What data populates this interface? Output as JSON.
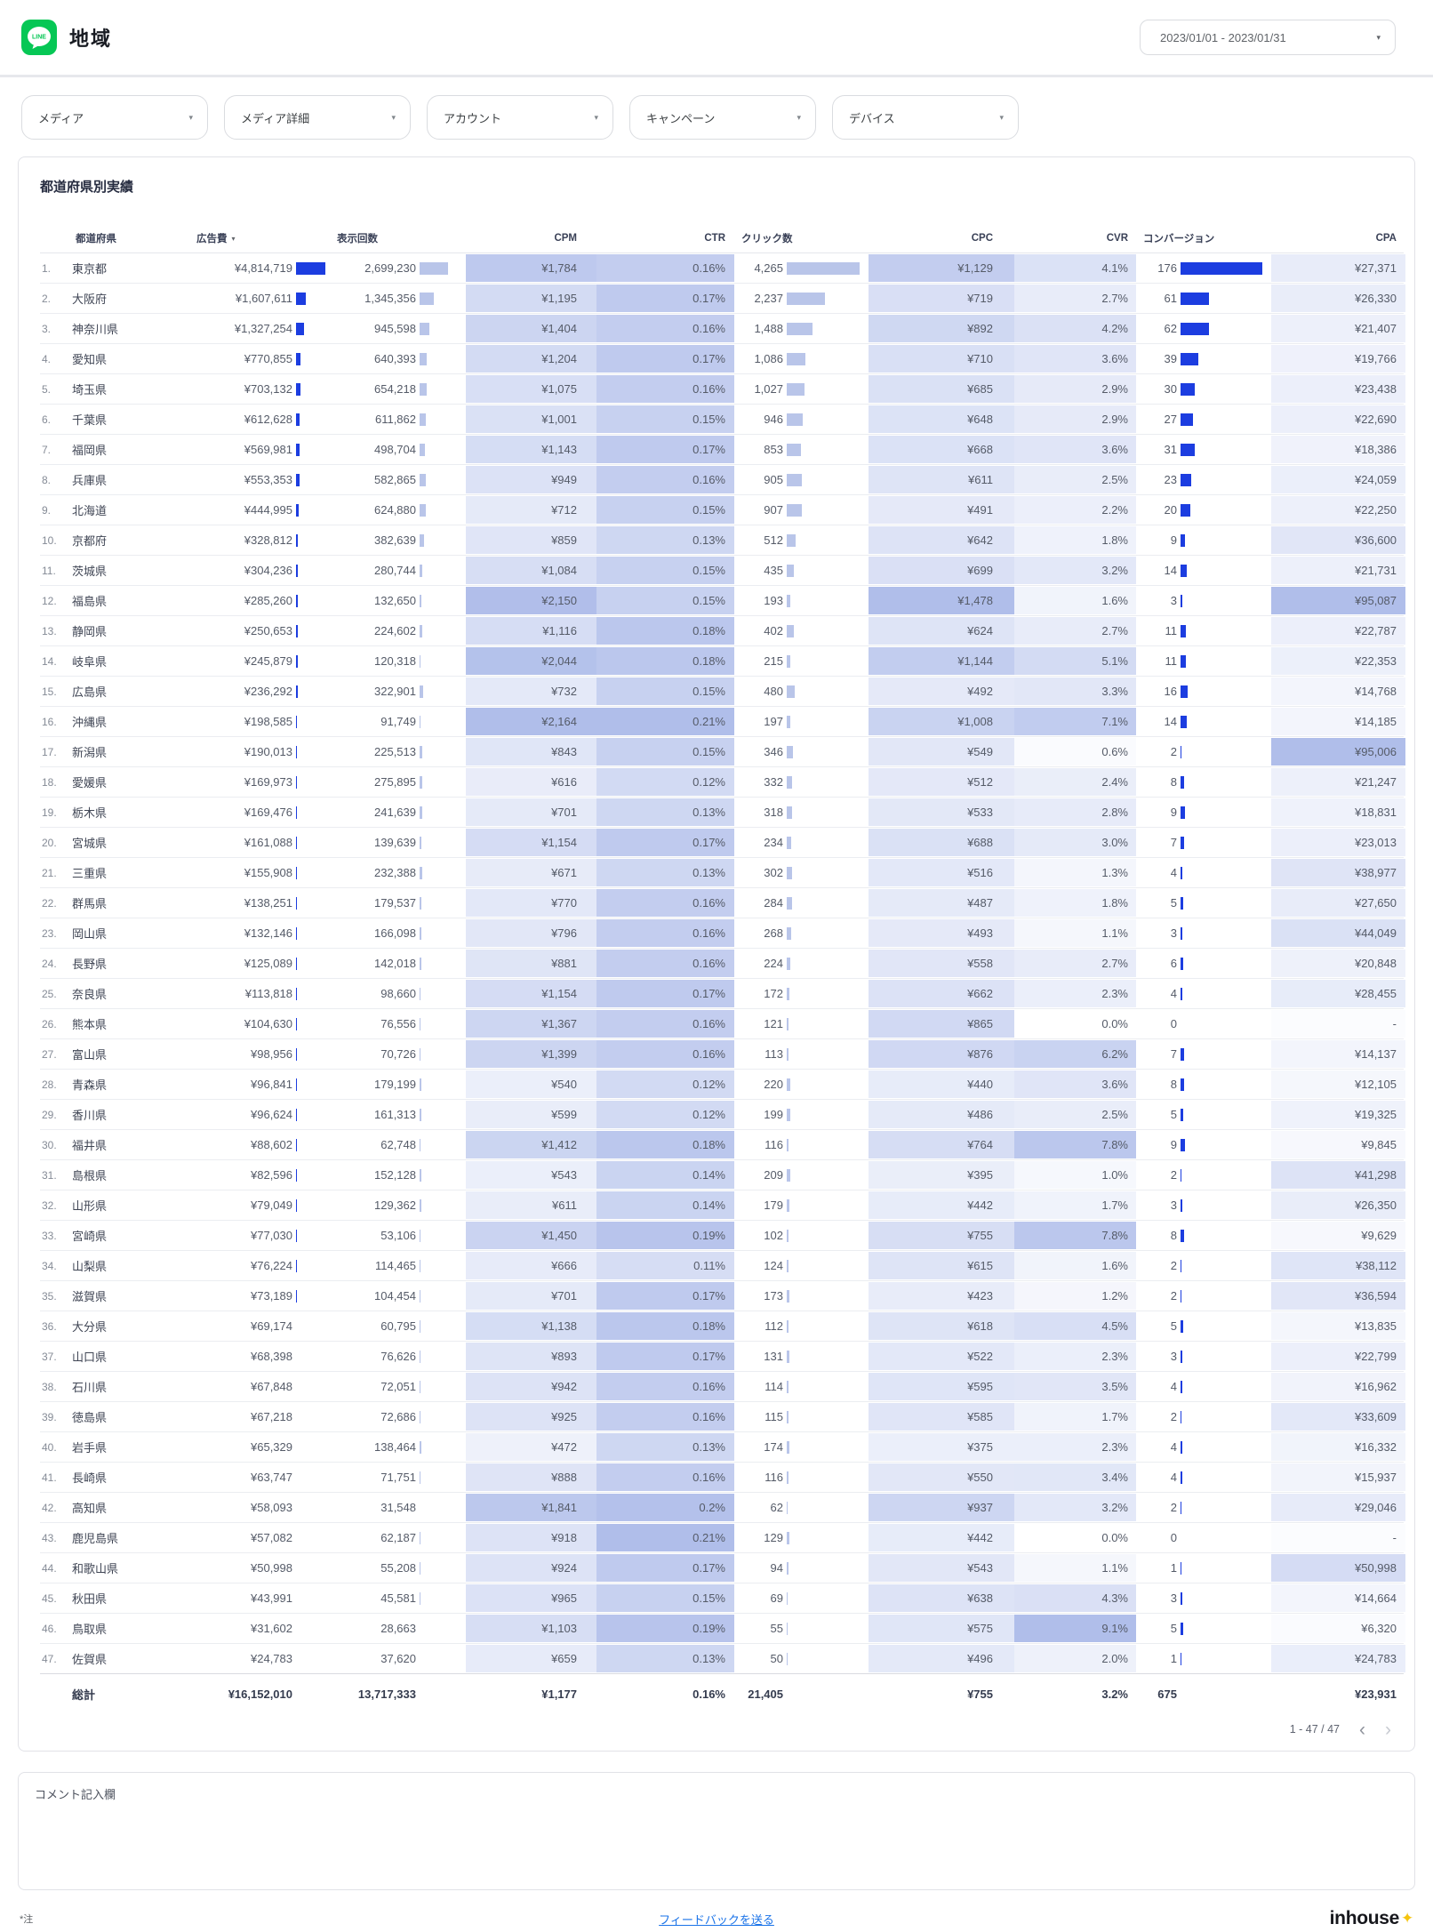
{
  "header": {
    "title": "地域",
    "date_range": "2023/01/01 - 2023/01/31"
  },
  "filters": [
    {
      "label": "メディア"
    },
    {
      "label": "メディア詳細"
    },
    {
      "label": "アカウント"
    },
    {
      "label": "キャンペーン"
    },
    {
      "label": "デバイス"
    }
  ],
  "table": {
    "title": "都道府県別実績",
    "columns": [
      {
        "label": "都道府県"
      },
      {
        "label": "広告費",
        "sorted": true
      },
      {
        "label": "表示回数"
      },
      {
        "label": "CPM"
      },
      {
        "label": "CTR"
      },
      {
        "label": "クリック数"
      },
      {
        "label": "CPC"
      },
      {
        "label": "CVR"
      },
      {
        "label": "コンバージョン"
      },
      {
        "label": "CPA"
      }
    ],
    "rows": [
      [
        "東京都",
        "¥4,814,719",
        "2,699,230",
        "¥1,784",
        "0.16%",
        "4,265",
        "¥1,129",
        "4.1%",
        "176",
        "¥27,371"
      ],
      [
        "大阪府",
        "¥1,607,611",
        "1,345,356",
        "¥1,195",
        "0.17%",
        "2,237",
        "¥719",
        "2.7%",
        "61",
        "¥26,330"
      ],
      [
        "神奈川県",
        "¥1,327,254",
        "945,598",
        "¥1,404",
        "0.16%",
        "1,488",
        "¥892",
        "4.2%",
        "62",
        "¥21,407"
      ],
      [
        "愛知県",
        "¥770,855",
        "640,393",
        "¥1,204",
        "0.17%",
        "1,086",
        "¥710",
        "3.6%",
        "39",
        "¥19,766"
      ],
      [
        "埼玉県",
        "¥703,132",
        "654,218",
        "¥1,075",
        "0.16%",
        "1,027",
        "¥685",
        "2.9%",
        "30",
        "¥23,438"
      ],
      [
        "千葉県",
        "¥612,628",
        "611,862",
        "¥1,001",
        "0.15%",
        "946",
        "¥648",
        "2.9%",
        "27",
        "¥22,690"
      ],
      [
        "福岡県",
        "¥569,981",
        "498,704",
        "¥1,143",
        "0.17%",
        "853",
        "¥668",
        "3.6%",
        "31",
        "¥18,386"
      ],
      [
        "兵庫県",
        "¥553,353",
        "582,865",
        "¥949",
        "0.16%",
        "905",
        "¥611",
        "2.5%",
        "23",
        "¥24,059"
      ],
      [
        "北海道",
        "¥444,995",
        "624,880",
        "¥712",
        "0.15%",
        "907",
        "¥491",
        "2.2%",
        "20",
        "¥22,250"
      ],
      [
        "京都府",
        "¥328,812",
        "382,639",
        "¥859",
        "0.13%",
        "512",
        "¥642",
        "1.8%",
        "9",
        "¥36,600"
      ],
      [
        "茨城県",
        "¥304,236",
        "280,744",
        "¥1,084",
        "0.15%",
        "435",
        "¥699",
        "3.2%",
        "14",
        "¥21,731"
      ],
      [
        "福島県",
        "¥285,260",
        "132,650",
        "¥2,150",
        "0.15%",
        "193",
        "¥1,478",
        "1.6%",
        "3",
        "¥95,087"
      ],
      [
        "静岡県",
        "¥250,653",
        "224,602",
        "¥1,116",
        "0.18%",
        "402",
        "¥624",
        "2.7%",
        "11",
        "¥22,787"
      ],
      [
        "岐阜県",
        "¥245,879",
        "120,318",
        "¥2,044",
        "0.18%",
        "215",
        "¥1,144",
        "5.1%",
        "11",
        "¥22,353"
      ],
      [
        "広島県",
        "¥236,292",
        "322,901",
        "¥732",
        "0.15%",
        "480",
        "¥492",
        "3.3%",
        "16",
        "¥14,768"
      ],
      [
        "沖縄県",
        "¥198,585",
        "91,749",
        "¥2,164",
        "0.21%",
        "197",
        "¥1,008",
        "7.1%",
        "14",
        "¥14,185"
      ],
      [
        "新潟県",
        "¥190,013",
        "225,513",
        "¥843",
        "0.15%",
        "346",
        "¥549",
        "0.6%",
        "2",
        "¥95,006"
      ],
      [
        "愛媛県",
        "¥169,973",
        "275,895",
        "¥616",
        "0.12%",
        "332",
        "¥512",
        "2.4%",
        "8",
        "¥21,247"
      ],
      [
        "栃木県",
        "¥169,476",
        "241,639",
        "¥701",
        "0.13%",
        "318",
        "¥533",
        "2.8%",
        "9",
        "¥18,831"
      ],
      [
        "宮城県",
        "¥161,088",
        "139,639",
        "¥1,154",
        "0.17%",
        "234",
        "¥688",
        "3.0%",
        "7",
        "¥23,013"
      ],
      [
        "三重県",
        "¥155,908",
        "232,388",
        "¥671",
        "0.13%",
        "302",
        "¥516",
        "1.3%",
        "4",
        "¥38,977"
      ],
      [
        "群馬県",
        "¥138,251",
        "179,537",
        "¥770",
        "0.16%",
        "284",
        "¥487",
        "1.8%",
        "5",
        "¥27,650"
      ],
      [
        "岡山県",
        "¥132,146",
        "166,098",
        "¥796",
        "0.16%",
        "268",
        "¥493",
        "1.1%",
        "3",
        "¥44,049"
      ],
      [
        "長野県",
        "¥125,089",
        "142,018",
        "¥881",
        "0.16%",
        "224",
        "¥558",
        "2.7%",
        "6",
        "¥20,848"
      ],
      [
        "奈良県",
        "¥113,818",
        "98,660",
        "¥1,154",
        "0.17%",
        "172",
        "¥662",
        "2.3%",
        "4",
        "¥28,455"
      ],
      [
        "熊本県",
        "¥104,630",
        "76,556",
        "¥1,367",
        "0.16%",
        "121",
        "¥865",
        "0.0%",
        "0",
        "-"
      ],
      [
        "富山県",
        "¥98,956",
        "70,726",
        "¥1,399",
        "0.16%",
        "113",
        "¥876",
        "6.2%",
        "7",
        "¥14,137"
      ],
      [
        "青森県",
        "¥96,841",
        "179,199",
        "¥540",
        "0.12%",
        "220",
        "¥440",
        "3.6%",
        "8",
        "¥12,105"
      ],
      [
        "香川県",
        "¥96,624",
        "161,313",
        "¥599",
        "0.12%",
        "199",
        "¥486",
        "2.5%",
        "5",
        "¥19,325"
      ],
      [
        "福井県",
        "¥88,602",
        "62,748",
        "¥1,412",
        "0.18%",
        "116",
        "¥764",
        "7.8%",
        "9",
        "¥9,845"
      ],
      [
        "島根県",
        "¥82,596",
        "152,128",
        "¥543",
        "0.14%",
        "209",
        "¥395",
        "1.0%",
        "2",
        "¥41,298"
      ],
      [
        "山形県",
        "¥79,049",
        "129,362",
        "¥611",
        "0.14%",
        "179",
        "¥442",
        "1.7%",
        "3",
        "¥26,350"
      ],
      [
        "宮崎県",
        "¥77,030",
        "53,106",
        "¥1,450",
        "0.19%",
        "102",
        "¥755",
        "7.8%",
        "8",
        "¥9,629"
      ],
      [
        "山梨県",
        "¥76,224",
        "114,465",
        "¥666",
        "0.11%",
        "124",
        "¥615",
        "1.6%",
        "2",
        "¥38,112"
      ],
      [
        "滋賀県",
        "¥73,189",
        "104,454",
        "¥701",
        "0.17%",
        "173",
        "¥423",
        "1.2%",
        "2",
        "¥36,594"
      ],
      [
        "大分県",
        "¥69,174",
        "60,795",
        "¥1,138",
        "0.18%",
        "112",
        "¥618",
        "4.5%",
        "5",
        "¥13,835"
      ],
      [
        "山口県",
        "¥68,398",
        "76,626",
        "¥893",
        "0.17%",
        "131",
        "¥522",
        "2.3%",
        "3",
        "¥22,799"
      ],
      [
        "石川県",
        "¥67,848",
        "72,051",
        "¥942",
        "0.16%",
        "114",
        "¥595",
        "3.5%",
        "4",
        "¥16,962"
      ],
      [
        "徳島県",
        "¥67,218",
        "72,686",
        "¥925",
        "0.16%",
        "115",
        "¥585",
        "1.7%",
        "2",
        "¥33,609"
      ],
      [
        "岩手県",
        "¥65,329",
        "138,464",
        "¥472",
        "0.13%",
        "174",
        "¥375",
        "2.3%",
        "4",
        "¥16,332"
      ],
      [
        "長崎県",
        "¥63,747",
        "71,751",
        "¥888",
        "0.16%",
        "116",
        "¥550",
        "3.4%",
        "4",
        "¥15,937"
      ],
      [
        "高知県",
        "¥58,093",
        "31,548",
        "¥1,841",
        "0.2%",
        "62",
        "¥937",
        "3.2%",
        "2",
        "¥29,046"
      ],
      [
        "鹿児島県",
        "¥57,082",
        "62,187",
        "¥918",
        "0.21%",
        "129",
        "¥442",
        "0.0%",
        "0",
        "-"
      ],
      [
        "和歌山県",
        "¥50,998",
        "55,208",
        "¥924",
        "0.17%",
        "94",
        "¥543",
        "1.1%",
        "1",
        "¥50,998"
      ],
      [
        "秋田県",
        "¥43,991",
        "45,581",
        "¥965",
        "0.15%",
        "69",
        "¥638",
        "4.3%",
        "3",
        "¥14,664"
      ],
      [
        "鳥取県",
        "¥31,602",
        "28,663",
        "¥1,103",
        "0.19%",
        "55",
        "¥575",
        "9.1%",
        "5",
        "¥6,320"
      ],
      [
        "佐賀県",
        "¥24,783",
        "37,620",
        "¥659",
        "0.13%",
        "50",
        "¥496",
        "2.0%",
        "1",
        "¥24,783"
      ]
    ],
    "total": {
      "label": "総計",
      "values": [
        "¥16,152,010",
        "13,717,333",
        "¥1,177",
        "0.16%",
        "21,405",
        "¥755",
        "3.2%",
        "675",
        "¥23,931"
      ]
    },
    "pagination": {
      "label": "1 - 47 / 47"
    }
  },
  "comment": {
    "label": "コメント記入欄"
  },
  "footer": {
    "note": "*注",
    "feedback_link": "フィードバックを送る",
    "logo_text": "inhouse",
    "logo_mark": "✦"
  },
  "icons": {
    "caret_down": "▾",
    "sort_desc": "▾",
    "chevron_left": "‹",
    "chevron_right": "›"
  },
  "colors": {
    "line_green": "#06C755",
    "bar_strong": "#1c3de0",
    "bar_soft": "#b9c5e9",
    "heat_base": "#b0beea",
    "link_blue": "#1a73e8",
    "logo_yellow": "#f5c40e"
  }
}
